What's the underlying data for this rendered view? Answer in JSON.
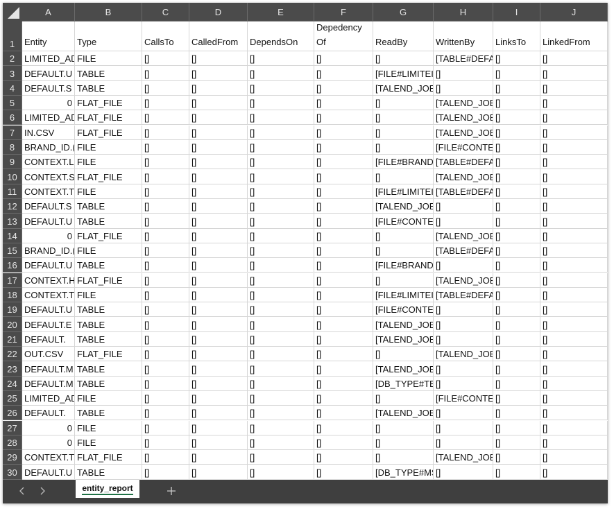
{
  "columns": [
    "A",
    "B",
    "C",
    "D",
    "E",
    "F",
    "G",
    "H",
    "I",
    "J"
  ],
  "row_numbers": [
    1,
    2,
    3,
    4,
    5,
    6,
    7,
    8,
    9,
    10,
    11,
    12,
    13,
    14,
    15,
    16,
    17,
    18,
    19,
    20,
    21,
    22,
    23,
    24,
    25,
    26,
    27,
    28,
    29,
    30
  ],
  "rows": [
    [
      "Entity",
      "Type",
      "CallsTo",
      "CalledFrom",
      "DependsOn",
      "Depedency Of",
      "ReadBy",
      "WrittenBy",
      "LinksTo",
      "LinkedFrom"
    ],
    [
      "LIMITED_AD",
      "FILE",
      "[]",
      "[]",
      "[]",
      "[]",
      "[]",
      "[TABLE#DEFA",
      "[]",
      "[]"
    ],
    [
      "DEFAULT.U",
      "TABLE",
      "[]",
      "[]",
      "[]",
      "[]",
      "[FILE#LIMITEI",
      "[]",
      "[]",
      "[]"
    ],
    [
      "DEFAULT.S",
      "TABLE",
      "[]",
      "[]",
      "[]",
      "[]",
      "[TALEND_JOE",
      "[]",
      "[]",
      "[]"
    ],
    [
      0,
      "FLAT_FILE",
      "[]",
      "[]",
      "[]",
      "[]",
      "[]",
      "[TALEND_JOE",
      "[]",
      "[]"
    ],
    [
      "LIMITED_AD",
      "FLAT_FILE",
      "[]",
      "[]",
      "[]",
      "[]",
      "[]",
      "[TALEND_JOE",
      "[]",
      "[]"
    ],
    [
      "IN.CSV",
      "FLAT_FILE",
      "[]",
      "[]",
      "[]",
      "[]",
      "[]",
      "[TALEND_JOE",
      "[]",
      "[]"
    ],
    [
      "BRAND_ID.(",
      "FILE",
      "[]",
      "[]",
      "[]",
      "[]",
      "[]",
      "[FILE#CONTE",
      "[]",
      "[]"
    ],
    [
      "CONTEXT.L",
      "FILE",
      "[]",
      "[]",
      "[]",
      "[]",
      "[FILE#BRAND",
      "[TABLE#DEFA",
      "[]",
      "[]"
    ],
    [
      "CONTEXT.S",
      "FLAT_FILE",
      "[]",
      "[]",
      "[]",
      "[]",
      "[]",
      "[TALEND_JOE",
      "[]",
      "[]"
    ],
    [
      "CONTEXT.T",
      "FILE",
      "[]",
      "[]",
      "[]",
      "[]",
      "[FILE#LIMITEI",
      "[TABLE#DEFA",
      "[]",
      "[]"
    ],
    [
      "DEFAULT.S",
      "TABLE",
      "[]",
      "[]",
      "[]",
      "[]",
      "[TALEND_JOE",
      "[]",
      "[]",
      "[]"
    ],
    [
      "DEFAULT.U",
      "TABLE",
      "[]",
      "[]",
      "[]",
      "[]",
      "[FILE#CONTE",
      "[]",
      "[]",
      "[]"
    ],
    [
      0,
      "FLAT_FILE",
      "[]",
      "[]",
      "[]",
      "[]",
      "[]",
      "[TALEND_JOE",
      "[]",
      "[]"
    ],
    [
      "BRAND_ID.(",
      "FILE",
      "[]",
      "[]",
      "[]",
      "[]",
      "[]",
      "[TABLE#DEFA",
      "[]",
      "[]"
    ],
    [
      "DEFAULT.U",
      "TABLE",
      "[]",
      "[]",
      "[]",
      "[]",
      "[FILE#BRAND",
      "[]",
      "[]",
      "[]"
    ],
    [
      "CONTEXT.H",
      "FLAT_FILE",
      "[]",
      "[]",
      "[]",
      "[]",
      "[]",
      "[TALEND_JOE",
      "[]",
      "[]"
    ],
    [
      "CONTEXT.T",
      "FILE",
      "[]",
      "[]",
      "[]",
      "[]",
      "[FILE#LIMITEI",
      "[TABLE#DEFA",
      "[]",
      "[]"
    ],
    [
      "DEFAULT.U",
      "TABLE",
      "[]",
      "[]",
      "[]",
      "[]",
      "[FILE#CONTE",
      "[]",
      "[]",
      "[]"
    ],
    [
      "DEFAULT.E",
      "TABLE",
      "[]",
      "[]",
      "[]",
      "[]",
      "[TALEND_JOE",
      "[]",
      "[]",
      "[]"
    ],
    [
      "DEFAULT.",
      "TABLE",
      "[]",
      "[]",
      "[]",
      "[]",
      "[TALEND_JOE",
      "[]",
      "[]",
      "[]"
    ],
    [
      "OUT.CSV",
      "FLAT_FILE",
      "[]",
      "[]",
      "[]",
      "[]",
      "[]",
      "[TALEND_JOE",
      "[]",
      "[]"
    ],
    [
      "DEFAULT.M",
      "TABLE",
      "[]",
      "[]",
      "[]",
      "[]",
      "[TALEND_JOE",
      "[]",
      "[]",
      "[]"
    ],
    [
      "DEFAULT.M",
      "TABLE",
      "[]",
      "[]",
      "[]",
      "[]",
      "[DB_TYPE#TE",
      "[]",
      "[]",
      "[]"
    ],
    [
      "LIMITED_AD",
      "FILE",
      "[]",
      "[]",
      "[]",
      "[]",
      "[]",
      "[FILE#CONTE",
      "[]",
      "[]"
    ],
    [
      "DEFAULT.",
      "TABLE",
      "[]",
      "[]",
      "[]",
      "[]",
      "[TALEND_JOE",
      "[]",
      "[]",
      "[]"
    ],
    [
      0,
      "FILE",
      "[]",
      "[]",
      "[]",
      "[]",
      "[]",
      "[]",
      "[]",
      "[]"
    ],
    [
      0,
      "FILE",
      "[]",
      "[]",
      "[]",
      "[]",
      "[]",
      "[]",
      "[]",
      "[]"
    ],
    [
      "CONTEXT.T",
      "FLAT_FILE",
      "[]",
      "[]",
      "[]",
      "[]",
      "[]",
      "[TALEND_JOE",
      "[]",
      "[]"
    ],
    [
      "DEFAULT.U",
      "TABLE",
      "[]",
      "[]",
      "[]",
      "[]",
      "[DB_TYPE#MS",
      "[]",
      "[]",
      "[]"
    ]
  ],
  "sheet_tab": "entity_report"
}
